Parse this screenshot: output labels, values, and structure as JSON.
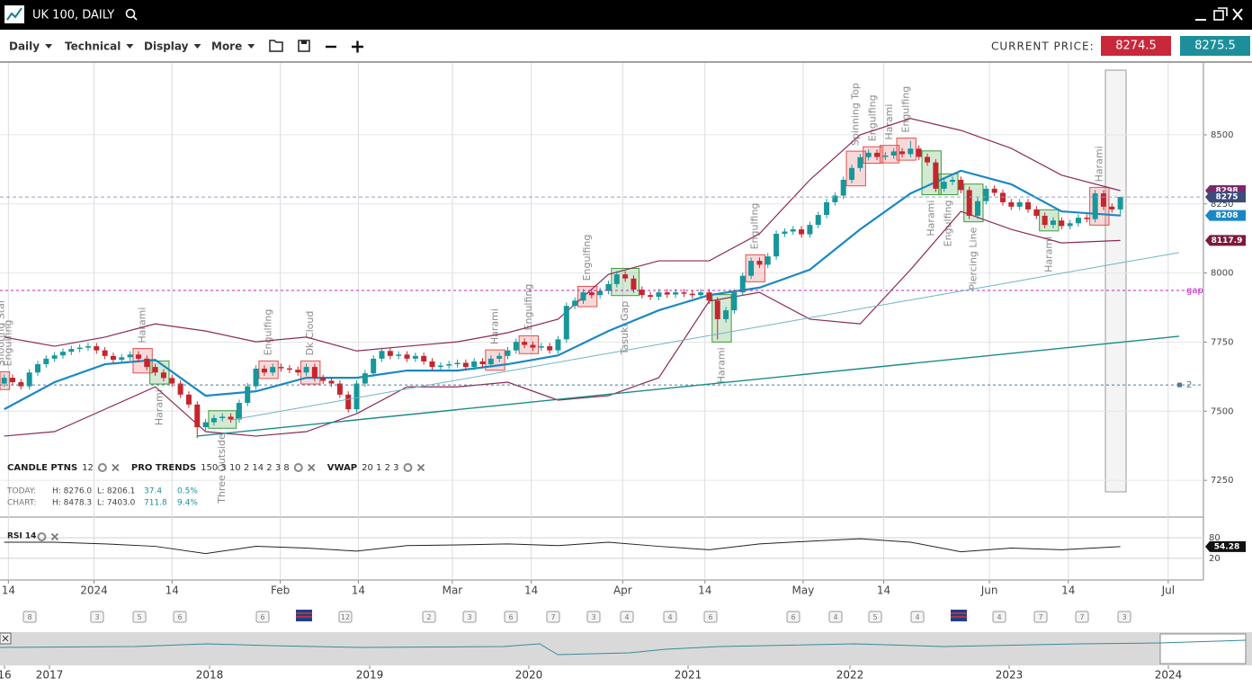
{
  "header": {
    "title": "UK 100, DAILY"
  },
  "toolbar": {
    "menus": [
      "Daily",
      "Technical",
      "Display",
      "More"
    ],
    "current_price_label": "CURRENT PRICE:",
    "bid": "8274.5",
    "ask": "8275.5"
  },
  "indicators": [
    {
      "name": "CANDLE PTNS",
      "params": "12"
    },
    {
      "name": "PRO TRENDS",
      "params": "150 3 10 2 14 2 3 8"
    },
    {
      "name": "VWAP",
      "params": "20 1 2 3"
    }
  ],
  "stats": {
    "today": [
      "TODAY:",
      "H: 8276.0",
      "L: 8206.1",
      "37.4",
      "0.5%"
    ],
    "chart": [
      "CHART:",
      "H: 8478.3",
      "L: 7403.0",
      "711.8",
      "9.4%"
    ]
  },
  "events": [
    "8",
    "3",
    "5",
    "6",
    "6",
    "12",
    "2",
    "3",
    "6",
    "7",
    "3",
    "4",
    "4",
    "6",
    "6",
    "4",
    "5",
    "4",
    "4",
    "7",
    "7",
    "3"
  ],
  "navigator": {
    "years": [
      "16",
      "2017",
      "2018",
      "2019",
      "2020",
      "2021",
      "2022",
      "2023",
      "2024"
    ]
  },
  "chart_data": [
    {
      "type": "candlestick",
      "up_color": "#17979a",
      "down_color": "#c4262e",
      "open": [
        7600,
        7621,
        7605,
        7590,
        7640,
        7670,
        7690,
        7702,
        7715,
        7725,
        7730,
        7735,
        7720,
        7700,
        7686,
        7695,
        7705,
        7690,
        7660,
        7640,
        7620,
        7600,
        7560,
        7524,
        7442,
        7460,
        7475,
        7480,
        7470,
        7530,
        7590,
        7654,
        7640,
        7660,
        7655,
        7650,
        7640,
        7660,
        7620,
        7610,
        7600,
        7560,
        7507,
        7600,
        7637,
        7690,
        7718,
        7700,
        7705,
        7690,
        7700,
        7680,
        7660,
        7665,
        7670,
        7675,
        7660,
        7680,
        7670,
        7690,
        7700,
        7720,
        7751,
        7740,
        7730,
        7735,
        7720,
        7760,
        7881,
        7900,
        7930,
        7920,
        7935,
        7960,
        7995,
        7980,
        7940,
        7920,
        7914,
        7930,
        7922,
        7930,
        7925,
        7920,
        7930,
        7900,
        7833,
        7865,
        7930,
        7990,
        8044,
        8030,
        8060,
        8142,
        8150,
        8158,
        8140,
        8174,
        8210,
        8256,
        8280,
        8337,
        8380,
        8419,
        8435,
        8420,
        8425,
        8440,
        8430,
        8450,
        8420,
        8400,
        8305,
        8330,
        8337,
        8300,
        8207,
        8260,
        8305,
        8290,
        8256,
        8240,
        8256,
        8230,
        8207,
        8174,
        8190,
        8170,
        8180,
        8200,
        8195,
        8288,
        8240,
        8230
      ],
      "high": [
        7633,
        7633,
        7617,
        7652,
        7682,
        7702,
        7714,
        7727,
        7737,
        7742,
        7747,
        7747,
        7732,
        7712,
        7707,
        7717,
        7717,
        7702,
        7672,
        7652,
        7632,
        7612,
        7572,
        7536,
        7472,
        7487,
        7492,
        7492,
        7542,
        7602,
        7666,
        7666,
        7672,
        7672,
        7667,
        7662,
        7672,
        7672,
        7632,
        7622,
        7612,
        7572,
        7612,
        7649,
        7702,
        7730,
        7730,
        7717,
        7717,
        7712,
        7712,
        7692,
        7677,
        7682,
        7687,
        7687,
        7692,
        7692,
        7702,
        7712,
        7732,
        7763,
        7763,
        7752,
        7747,
        7747,
        7772,
        7893,
        7912,
        7942,
        7942,
        7947,
        7972,
        8007,
        8007,
        7992,
        7952,
        7932,
        7942,
        7942,
        7942,
        7942,
        7937,
        7942,
        7942,
        7912,
        7877,
        7942,
        8002,
        8056,
        8056,
        8072,
        8154,
        8162,
        8170,
        8170,
        8186,
        8222,
        8268,
        8292,
        8349,
        8392,
        8431,
        8447,
        8447,
        8437,
        8452,
        8452,
        8478.3,
        8462,
        8432,
        8412,
        8342,
        8349,
        8349,
        8312,
        8272,
        8317,
        8317,
        8302,
        8268,
        8268,
        8268,
        8242,
        8219,
        8202,
        8202,
        8192,
        8212,
        8212,
        8300,
        8300,
        8252,
        8276
      ],
      "low": [
        7588,
        7593,
        7578,
        7578,
        7628,
        7658,
        7678,
        7690,
        7703,
        7713,
        7718,
        7708,
        7688,
        7674,
        7674,
        7683,
        7678,
        7648,
        7628,
        7608,
        7588,
        7548,
        7512,
        7403,
        7430,
        7448,
        7463,
        7458,
        7458,
        7518,
        7578,
        7628,
        7628,
        7643,
        7638,
        7628,
        7628,
        7608,
        7598,
        7588,
        7548,
        7495,
        7495,
        7588,
        7625,
        7678,
        7688,
        7688,
        7678,
        7678,
        7668,
        7648,
        7648,
        7653,
        7658,
        7648,
        7648,
        7658,
        7658,
        7678,
        7688,
        7708,
        7728,
        7718,
        7718,
        7708,
        7708,
        7748,
        7869,
        7888,
        7908,
        7908,
        7923,
        7948,
        7968,
        7928,
        7908,
        7902,
        7902,
        7910,
        7910,
        7913,
        7908,
        7908,
        7888,
        7760,
        7821,
        7853,
        7918,
        7978,
        8018,
        8018,
        8048,
        8130,
        8138,
        8128,
        8128,
        8162,
        8198,
        8244,
        8268,
        8325,
        8368,
        8407,
        8408,
        8408,
        8413,
        8418,
        8418,
        8408,
        8388,
        8293,
        8293,
        8318,
        8288,
        8195,
        8195,
        8248,
        8278,
        8244,
        8228,
        8228,
        8218,
        8195,
        8162,
        8162,
        8158,
        8158,
        8168,
        8183,
        8183,
        8228,
        8218,
        8206.1
      ],
      "close": [
        7621,
        7605,
        7590,
        7640,
        7670,
        7690,
        7702,
        7715,
        7725,
        7730,
        7735,
        7720,
        7700,
        7686,
        7695,
        7705,
        7690,
        7660,
        7640,
        7620,
        7600,
        7560,
        7524,
        7442,
        7460,
        7475,
        7480,
        7470,
        7530,
        7590,
        7654,
        7640,
        7660,
        7655,
        7650,
        7640,
        7660,
        7620,
        7610,
        7600,
        7560,
        7507,
        7600,
        7637,
        7690,
        7718,
        7700,
        7705,
        7690,
        7700,
        7680,
        7660,
        7665,
        7670,
        7675,
        7660,
        7680,
        7670,
        7690,
        7700,
        7720,
        7751,
        7740,
        7730,
        7735,
        7720,
        7760,
        7881,
        7900,
        7930,
        7920,
        7935,
        7960,
        7995,
        7980,
        7940,
        7920,
        7914,
        7930,
        7922,
        7930,
        7925,
        7920,
        7930,
        7900,
        7833,
        7865,
        7930,
        7990,
        8044,
        8030,
        8060,
        8142,
        8150,
        8158,
        8140,
        8174,
        8210,
        8256,
        8280,
        8337,
        8380,
        8419,
        8435,
        8420,
        8425,
        8440,
        8430,
        8450,
        8420,
        8400,
        8305,
        8330,
        8337,
        8300,
        8207,
        8260,
        8305,
        8290,
        8256,
        8240,
        8256,
        8230,
        8207,
        8174,
        8190,
        8170,
        8180,
        8200,
        8195,
        8288,
        8240,
        8230,
        8275
      ],
      "series": [
        {
          "color": "#8b2a57",
          "x": [
            0,
            6,
            12,
            18,
            24,
            30,
            36,
            42,
            48,
            54,
            60,
            66,
            72,
            78,
            84,
            90,
            96,
            102,
            108,
            114,
            120,
            126,
            133
          ],
          "values": [
            7768,
            7735,
            7768,
            7816,
            7790,
            7751,
            7768,
            7718,
            7735,
            7751,
            7784,
            7833,
            7995,
            8044,
            8044,
            8142,
            8337,
            8500,
            8559,
            8516,
            8451,
            8354,
            8298
          ]
        },
        {
          "color": "#1b88c4",
          "x": [
            0,
            6,
            12,
            18,
            24,
            30,
            36,
            42,
            48,
            54,
            60,
            66,
            72,
            78,
            84,
            90,
            96,
            102,
            108,
            114,
            120,
            126,
            133
          ],
          "values": [
            7507,
            7605,
            7670,
            7686,
            7556,
            7572,
            7621,
            7621,
            7647,
            7647,
            7670,
            7702,
            7790,
            7865,
            7920,
            7947,
            8012,
            8158,
            8288,
            8370,
            8321,
            8223,
            8208
          ]
        },
        {
          "color": "#8b2a57",
          "x": [
            0,
            6,
            12,
            18,
            24,
            30,
            36,
            42,
            48,
            54,
            60,
            66,
            72,
            78,
            84,
            90,
            96,
            102,
            108,
            114,
            120,
            126,
            133
          ],
          "values": [
            7410,
            7426,
            7507,
            7588,
            7426,
            7410,
            7426,
            7491,
            7588,
            7588,
            7605,
            7540,
            7556,
            7621,
            7898,
            7930,
            7833,
            7816,
            8012,
            8223,
            8158,
            8109,
            8117.9
          ]
        }
      ],
      "trendlines": [
        {
          "color": "#1b8a8a",
          "x": [
            23,
            140
          ],
          "values": [
            7410,
            7771
          ]
        },
        {
          "color": "#6fb3c4",
          "x": [
            27,
            140
          ],
          "values": [
            7468,
            8074
          ]
        }
      ],
      "levels": [
        {
          "label": "gap",
          "value": 7937,
          "color": "#c020c0"
        },
        {
          "label": "2",
          "value": 7595,
          "color": "#4a7a9a"
        }
      ],
      "annotations": [
        "Shooting Star",
        "Engulfing",
        "Harami",
        "Harami",
        "Three Outside",
        "Engulfing",
        "Dk Cloud",
        "Harami",
        "Engulfing",
        "Engulfing",
        "Tasuki Gap",
        "Harami",
        "Engulfing",
        "Spinning Top",
        "Engulfing",
        "Harami",
        "Engulfing",
        "Harami",
        "Engulfing",
        "Piercing Line",
        "Harami",
        "Harami"
      ],
      "xlim": [
        -0.5,
        142.9
      ],
      "xticks": [
        {
          "value": 0.5,
          "label": "14"
        },
        {
          "value": 10.7,
          "label": "2024"
        },
        {
          "value": 20,
          "label": "14"
        },
        {
          "value": 32.9,
          "label": "Feb"
        },
        {
          "value": 42.2,
          "label": "14"
        },
        {
          "value": 53.4,
          "label": "Mar"
        },
        {
          "value": 62.8,
          "label": "14"
        },
        {
          "value": 73.7,
          "label": "Apr"
        },
        {
          "value": 83.5,
          "label": "14"
        },
        {
          "value": 95.2,
          "label": "May"
        },
        {
          "value": 104.8,
          "label": "14"
        },
        {
          "value": 117.4,
          "label": "Jun"
        },
        {
          "value": 126.8,
          "label": "14"
        },
        {
          "value": 138.7,
          "label": "Jul"
        }
      ],
      "ylim": [
        7117,
        8760
      ],
      "yticks": [
        7250,
        7500,
        7750,
        8000,
        8250,
        8500
      ],
      "grid": true
    },
    {
      "type": "line",
      "title": "RSI 14",
      "color": "#222222",
      "x": [
        0,
        6,
        12,
        18,
        24,
        30,
        36,
        42,
        48,
        54,
        60,
        66,
        72,
        78,
        84,
        90,
        96,
        102,
        108,
        114,
        120,
        126,
        133
      ],
      "values": [
        67,
        67,
        62,
        55,
        34,
        55,
        50,
        41,
        57,
        59,
        62,
        57,
        67,
        55,
        45,
        62,
        70,
        77,
        67,
        39,
        50,
        45,
        54.28
      ],
      "ylim": [
        -43,
        135
      ],
      "yticks": [
        20,
        80
      ]
    }
  ]
}
